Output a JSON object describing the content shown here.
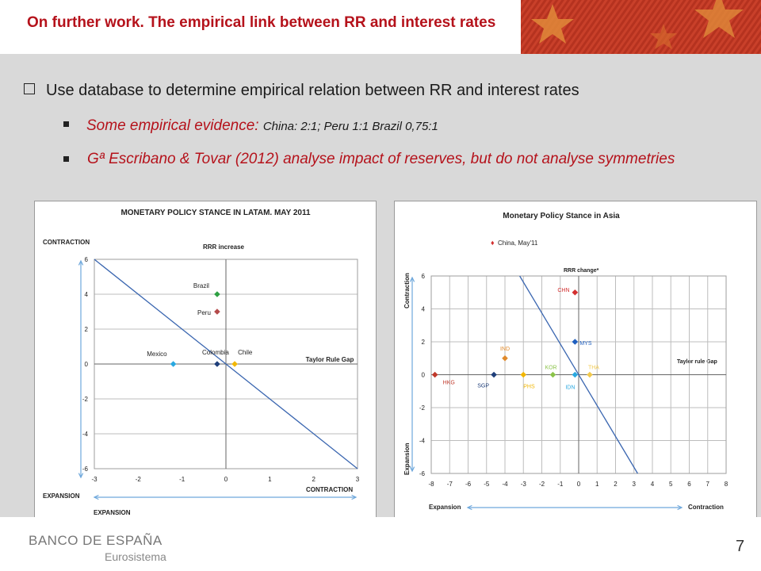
{
  "slide": {
    "title": "On further work. The empirical link between RR and interest rates",
    "bullet": "Use database to determine empirical relation between RR and interest rates",
    "sub1_italic": "Some empirical evidence:",
    "sub1_small": "China: 2:1; Peru 1:1 Brazil 0,75:1",
    "sub2": "Gª Escribano & Tovar (2012) analyse impact of reserves, but do not analyse symmetries",
    "page_number": "7",
    "logo_main": "BANCO DE ESPAÑA",
    "logo_sub": "Eurosistema"
  },
  "colors": {
    "title_red": "#b5121b",
    "background_gray": "#d9d9d9",
    "line_blue": "#3a66b0"
  },
  "chart_data": [
    {
      "type": "scatter",
      "title": "MONETARY POLICY STANCE IN LATAM. MAY 2011",
      "xlim": [
        -3,
        3
      ],
      "ylim": [
        -6,
        6
      ],
      "x_ticks": [
        "-3",
        "-2",
        "-1",
        "0",
        "1",
        "2",
        "3"
      ],
      "y_ticks": [
        "6",
        "4",
        "2",
        "0",
        "-2",
        "-4",
        "-6"
      ],
      "labels": {
        "y_top": "CONTRACTION",
        "y_bottom": "EXPANSION",
        "x_left": "EXPANSION",
        "x_right": "CONTRACTION",
        "y_axis": "RRR increase",
        "x_axis": "Taylor Rule Gap"
      },
      "points": [
        {
          "name": "Brazil",
          "x": -0.2,
          "y": 4.0,
          "color": "#2ea043"
        },
        {
          "name": "Peru",
          "x": -0.2,
          "y": 3.0,
          "color": "#b44a4a"
        },
        {
          "name": "Mexico",
          "x": -1.2,
          "y": 0.0,
          "color": "#29a8e0"
        },
        {
          "name": "Colombia",
          "x": -0.2,
          "y": 0.0,
          "color": "#1f3f7a"
        },
        {
          "name": "Chile",
          "x": 0.2,
          "y": 0.0,
          "color": "#f2b705"
        }
      ],
      "line": {
        "x1": -3,
        "y1": 6,
        "x2": 3,
        "y2": -6
      }
    },
    {
      "type": "scatter",
      "title": "Monetary Policy Stance in Asia",
      "legend": "China, May'11",
      "xlim": [
        -8,
        8
      ],
      "ylim": [
        -6,
        6
      ],
      "x_ticks": [
        "-8",
        "-7",
        "-6",
        "-5",
        "-4",
        "-3",
        "-2",
        "-1",
        "0",
        "1",
        "2",
        "3",
        "4",
        "5",
        "6",
        "7",
        "8"
      ],
      "y_ticks": [
        "6",
        "4",
        "2",
        "0",
        "-2",
        "-4",
        "-6"
      ],
      "labels": {
        "y_top": "Contraction",
        "y_bottom": "Expansion",
        "x_left": "Expansion",
        "x_right": "Contraction",
        "y_axis": "RRR change*",
        "x_axis": "Taylor rule Gap"
      },
      "points": [
        {
          "name": "HKG",
          "x": -7.8,
          "y": 0.0,
          "color": "#c0392b"
        },
        {
          "name": "SGP",
          "x": -4.6,
          "y": 0.0,
          "color": "#1f3f7a"
        },
        {
          "name": "IND",
          "x": -4.0,
          "y": 1.0,
          "color": "#e08a2b"
        },
        {
          "name": "PHS",
          "x": -3.0,
          "y": 0.0,
          "color": "#f2b705"
        },
        {
          "name": "KOR",
          "x": -1.4,
          "y": 0.0,
          "color": "#8bc34a"
        },
        {
          "name": "CHN",
          "x": -0.2,
          "y": 5.0,
          "color": "#d32f2f"
        },
        {
          "name": "MYS",
          "x": -0.2,
          "y": 2.0,
          "color": "#1f5fbf"
        },
        {
          "name": "IDN",
          "x": -0.2,
          "y": 0.0,
          "color": "#29a8e0"
        },
        {
          "name": "THA",
          "x": 0.6,
          "y": 0.0,
          "color": "#f2c94c"
        }
      ],
      "line": {
        "x1": -3.2,
        "y1": 6,
        "x2": 3.2,
        "y2": -6
      }
    }
  ]
}
